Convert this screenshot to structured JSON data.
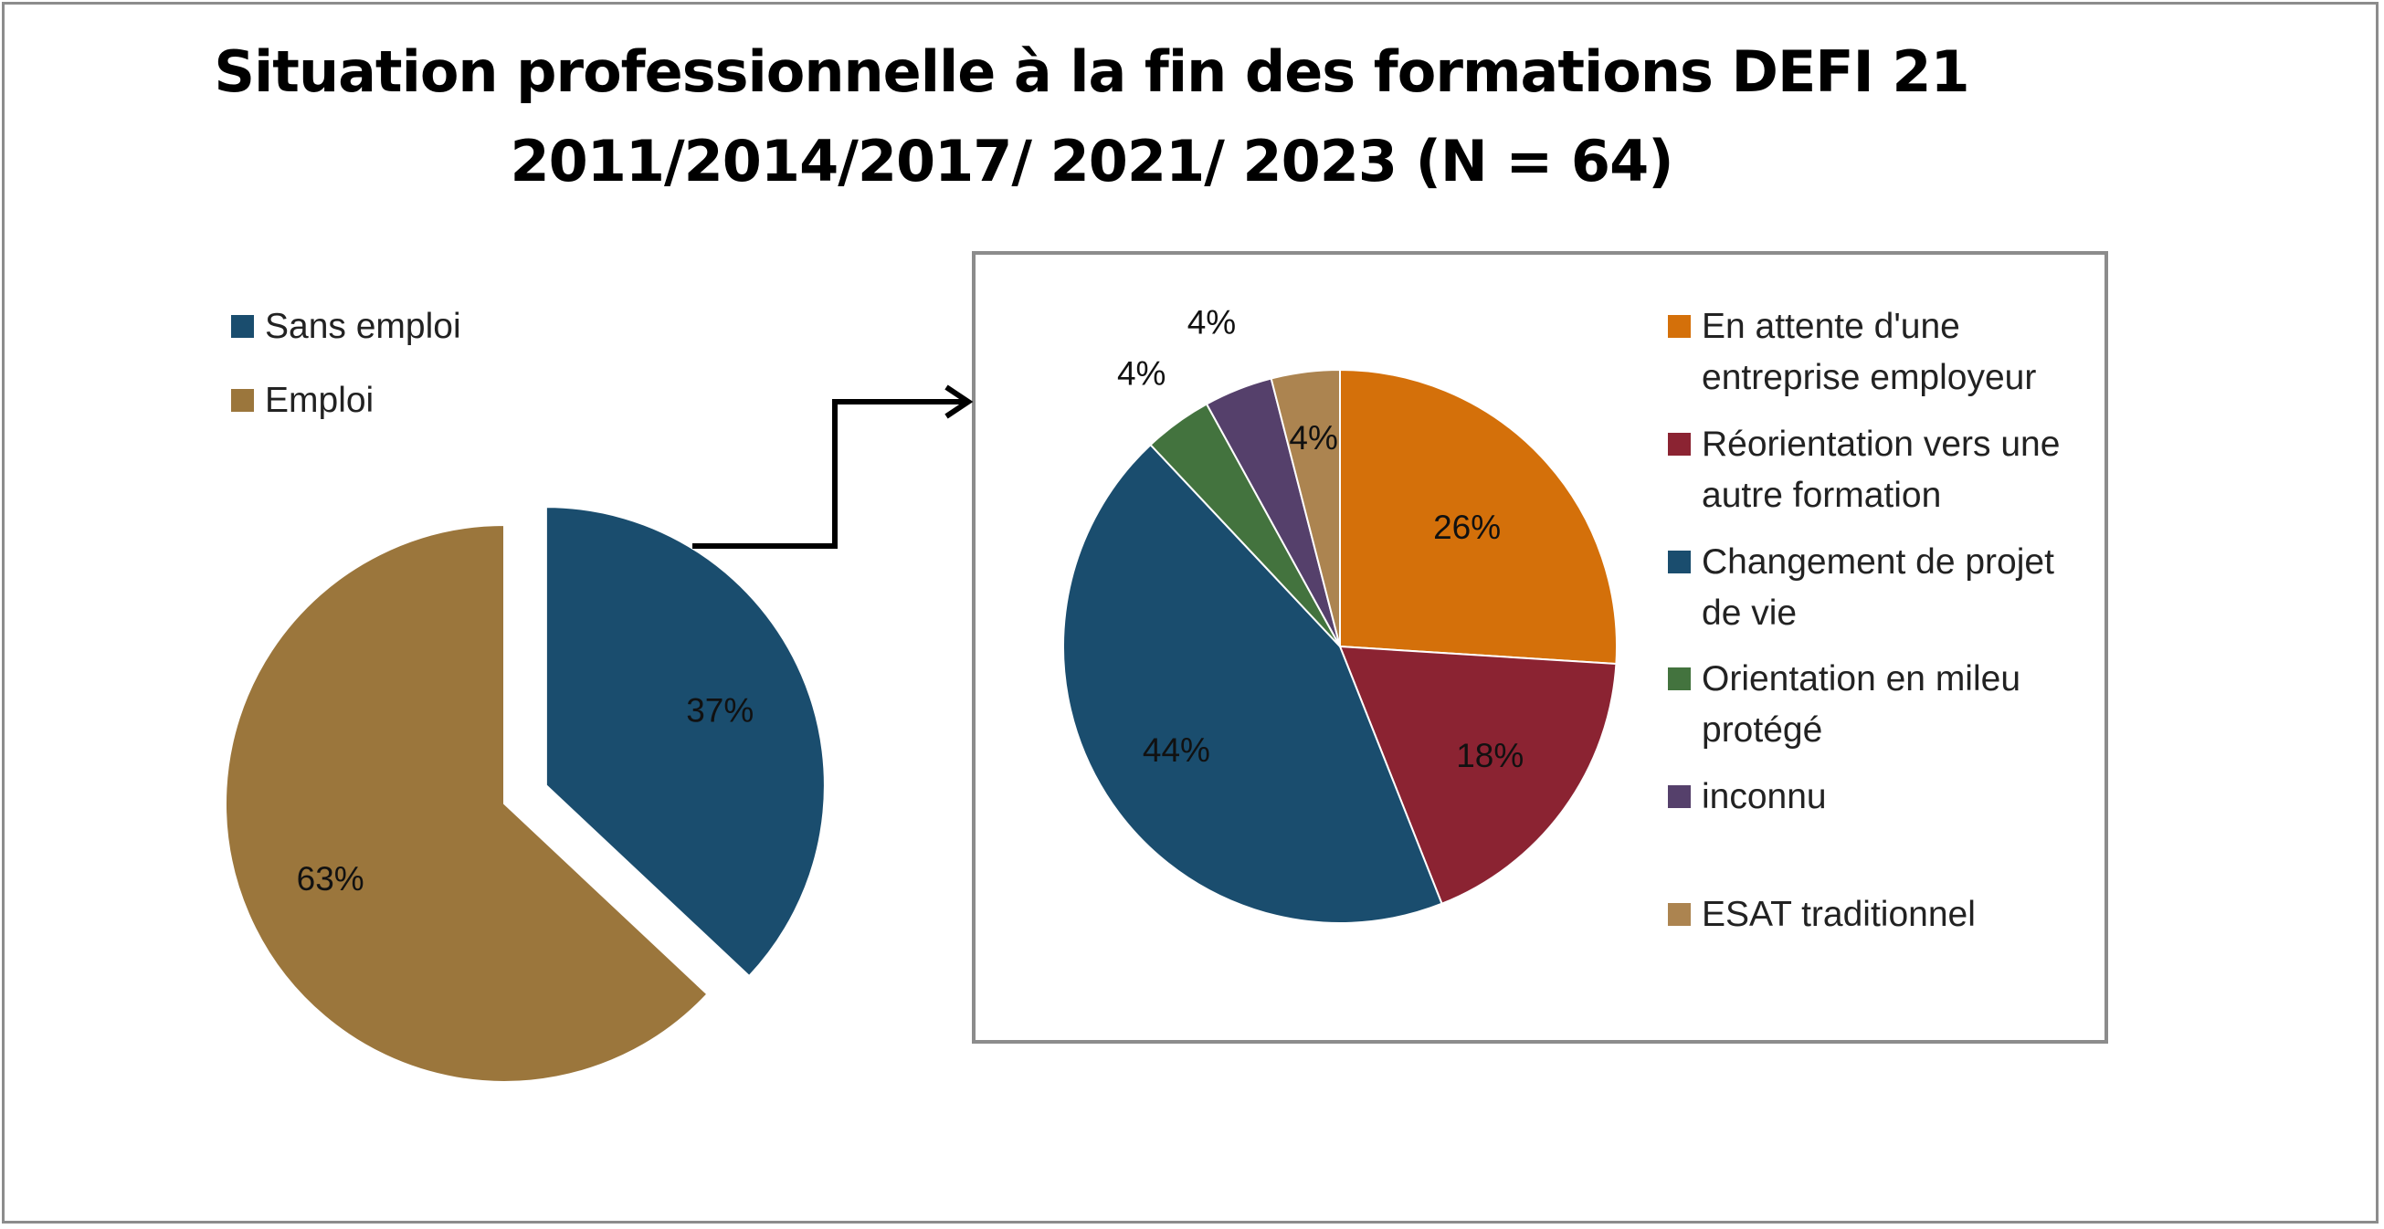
{
  "title_line1": "Situation professionnelle à la fin des formations DEFI 21",
  "title_line2": "2011/2014/2017/ 2021/ 2023 (N = 64)",
  "chart_data": [
    {
      "type": "pie",
      "categories": [
        "Sans emploi",
        "Emploi"
      ],
      "values": [
        37,
        63
      ],
      "colors": [
        "#1a4d6e",
        "#9b763c"
      ],
      "data_labels": [
        "37%",
        "63%"
      ],
      "exploded": "Sans emploi",
      "legend": [
        "Sans emploi",
        "Emploi"
      ],
      "legend_position": "top-left"
    },
    {
      "type": "pie",
      "categories": [
        "En attente d'une entreprise employeur",
        "Réorientation vers une autre formation",
        "Changement de projet de vie",
        "Orientation en mileu protégé",
        "inconnu",
        "ESAT traditionnel"
      ],
      "values": [
        26,
        18,
        44,
        4,
        4,
        4
      ],
      "colors": [
        "#d4700a",
        "#8b2332",
        "#1a4d6e",
        "#43733e",
        "#55406b",
        "#ac8450"
      ],
      "data_labels": [
        "26%",
        "18%",
        "44%",
        "4%",
        "4%",
        "4%"
      ],
      "legend": [
        "En attente d'une\nentreprise employeur",
        "Réorientation vers une\nautre formation",
        "Changement de projet\nde vie",
        "Orientation en mileu\nprotégé",
        "inconnu",
        " ESAT traditionnel"
      ],
      "legend_position": "right"
    }
  ]
}
